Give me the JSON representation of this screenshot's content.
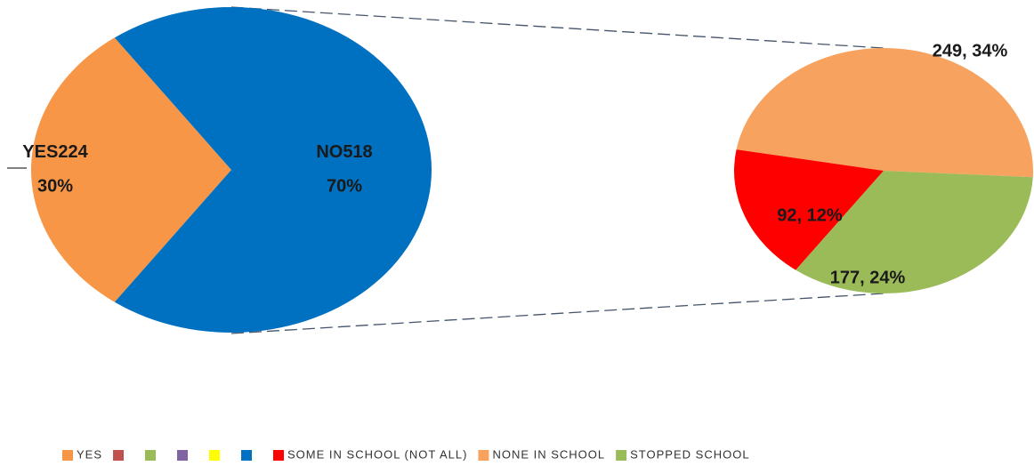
{
  "chart_data": {
    "type": "pie-of-pie",
    "main": {
      "categories": [
        "YES",
        "NO"
      ],
      "values": [
        224,
        518
      ],
      "percent_labels": [
        "30%",
        "70%"
      ],
      "colors": [
        "#f79646",
        "#0070c0"
      ]
    },
    "secondary": {
      "categories": [
        "NONE IN SCHOOL",
        "SOME IN SCHOOL (NOT ALL)",
        "STOPPED SCHOOL"
      ],
      "values": [
        249,
        92,
        177
      ],
      "value_labels": [
        "249, 34%",
        "92, 12%",
        "177, 24%"
      ],
      "colors": [
        "#f7a35f",
        "#ff0000",
        "#9bbb59"
      ]
    },
    "legend": [
      {
        "name": "YES",
        "color": "#f79646"
      },
      {
        "name": null,
        "color": "#c0504d"
      },
      {
        "name": null,
        "color": "#9bbb59"
      },
      {
        "name": null,
        "color": "#8064a2"
      },
      {
        "name": null,
        "color": "#ffff00"
      },
      {
        "name": null,
        "color": "#0070c0"
      },
      {
        "name": "SOME IN SCHOOL (NOT ALL)",
        "color": "#ff0000"
      },
      {
        "name": "NONE IN SCHOOL",
        "color": "#f7a35f"
      },
      {
        "name": "STOPPED SCHOOL",
        "color": "#9bbb59"
      }
    ]
  }
}
